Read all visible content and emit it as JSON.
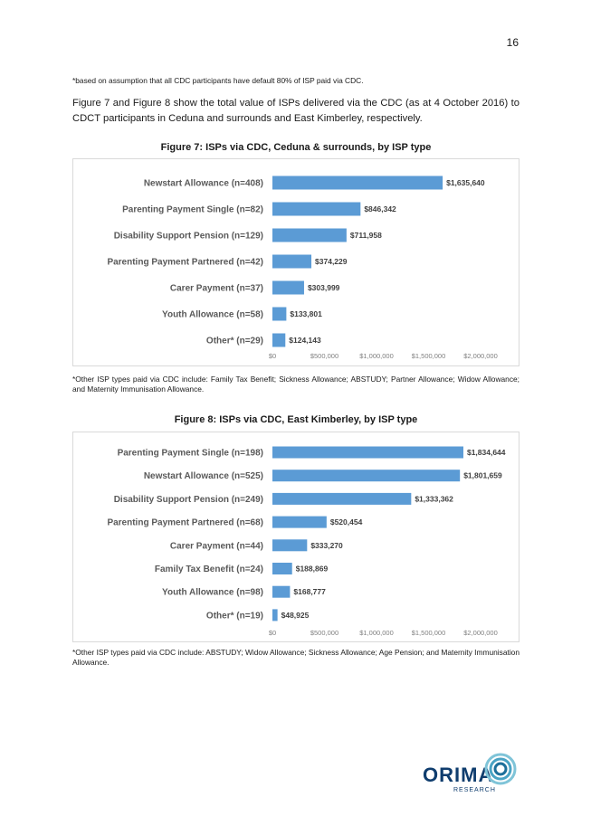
{
  "page": {
    "number": "16",
    "footnote_top": "*based on assumption that all CDC participants have default 80% of ISP paid via CDC.",
    "intro": "Figure 7 and Figure 8 show the total value of ISPs delivered via the CDC (as at 4 October 2016) to CDCT participants in Ceduna and surrounds and East Kimberley, respectively."
  },
  "figure7": {
    "title": "Figure 7: ISPs via CDC, Ceduna & surrounds, by ISP type",
    "note": "*Other ISP types paid via CDC include: Family Tax Benefit; Sickness Allowance; ABSTUDY; Partner Allowance; Widow Allowance; and Maternity Immunisation Allowance."
  },
  "figure8": {
    "title": "Figure 8: ISPs via CDC, East Kimberley, by ISP type",
    "note": "*Other ISP types paid via CDC include: ABSTUDY; Widow Allowance; Sickness Allowance; Age Pension; and Maternity Immunisation Allowance."
  },
  "logo": {
    "name": "ORIMA",
    "sub": "RESEARCH"
  },
  "colors": {
    "bar": "#5b9bd5",
    "text": "#1a1a1a",
    "grid": "#d9d9d9"
  },
  "chart_data": [
    {
      "type": "bar",
      "orientation": "horizontal",
      "categories": [
        "Newstart Allowance (n=408)",
        "Parenting Payment Single (n=82)",
        "Disability Support Pension (n=129)",
        "Parenting Payment Partnered (n=42)",
        "Carer Payment (n=37)",
        "Youth Allowance (n=58)",
        "Other* (n=29)"
      ],
      "values": [
        1635640,
        846342,
        711958,
        374229,
        303999,
        133801,
        124143
      ],
      "data_labels": [
        "$1,635,640",
        "$846,342",
        "$711,958",
        "$374,229",
        "$303,999",
        "$133,801",
        "$124,143"
      ],
      "ticks": [
        "$0",
        "$500,000",
        "$1,000,000",
        "$1,500,000",
        "$2,000,000"
      ],
      "xlim": [
        0,
        2000000
      ],
      "grid": false,
      "legend": false
    },
    {
      "type": "bar",
      "orientation": "horizontal",
      "categories": [
        "Parenting Payment Single (n=198)",
        "Newstart Allowance (n=525)",
        "Disability Support Pension (n=249)",
        "Parenting Payment Partnered (n=68)",
        "Carer Payment (n=44)",
        "Family Tax Benefit (n=24)",
        "Youth Allowance (n=98)",
        "Other* (n=19)"
      ],
      "values": [
        1834644,
        1801659,
        1333362,
        520454,
        333270,
        188869,
        168777,
        48925
      ],
      "data_labels": [
        "$1,834,644",
        "$1,801,659",
        "$1,333,362",
        "$520,454",
        "$333,270",
        "$188,869",
        "$168,777",
        "$48,925"
      ],
      "ticks": [
        "$0",
        "$500,000",
        "$1,000,000",
        "$1,500,000",
        "$2,000,000"
      ],
      "xlim": [
        0,
        2000000
      ],
      "grid": false,
      "legend": false
    }
  ]
}
